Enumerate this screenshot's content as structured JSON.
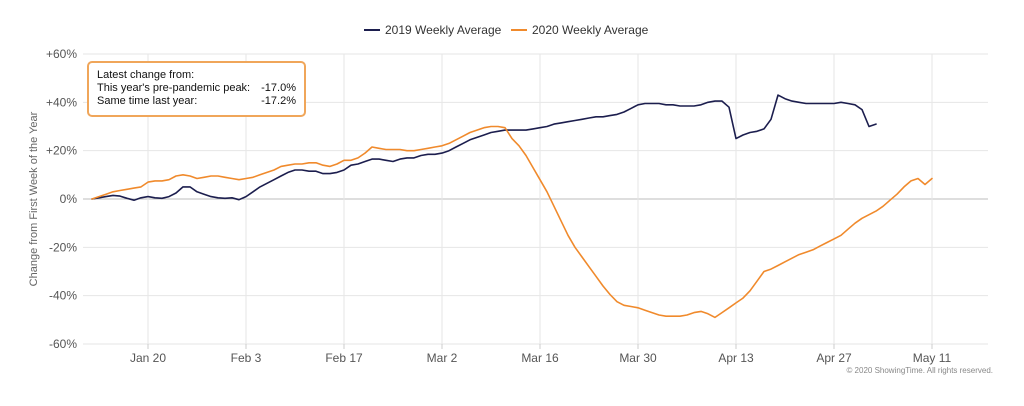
{
  "chart_data": {
    "type": "line",
    "title": "",
    "xlabel": "",
    "ylabel": "Change from First Week of the Year",
    "ylim": [
      -60,
      60
    ],
    "yticks": [
      -60,
      -40,
      -20,
      0,
      20,
      40,
      60
    ],
    "ytick_labels": [
      "-60%",
      "-40%",
      "-20%",
      "0%",
      "+20%",
      "+40%",
      "+60%"
    ],
    "xlim": [
      0,
      129
    ],
    "xticks": [
      {
        "day": 8,
        "label": "Jan 20"
      },
      {
        "day": 22,
        "label": "Feb 3"
      },
      {
        "day": 36,
        "label": "Feb 17"
      },
      {
        "day": 50,
        "label": "Mar 2"
      },
      {
        "day": 64,
        "label": "Mar 16"
      },
      {
        "day": 78,
        "label": "Mar 30"
      },
      {
        "day": 92,
        "label": "Apr 13"
      },
      {
        "day": 106,
        "label": "Apr 27"
      },
      {
        "day": 120,
        "label": "May 11"
      }
    ],
    "grid": true,
    "legend_position": "top-center",
    "series": [
      {
        "name": "2019 Weekly Average",
        "color": "#1c1e4e",
        "points": [
          [
            0,
            0
          ],
          [
            1,
            0.5
          ],
          [
            2,
            1
          ],
          [
            3,
            1.5
          ],
          [
            4,
            1.2
          ],
          [
            5,
            0.3
          ],
          [
            6,
            -0.5
          ],
          [
            7,
            0.5
          ],
          [
            8,
            1
          ],
          [
            9,
            0.5
          ],
          [
            10,
            0.3
          ],
          [
            11,
            1
          ],
          [
            12,
            2.5
          ],
          [
            13,
            5
          ],
          [
            14,
            5
          ],
          [
            15,
            3
          ],
          [
            16,
            2
          ],
          [
            17,
            1
          ],
          [
            18,
            0.5
          ],
          [
            19,
            0.3
          ],
          [
            20,
            0.5
          ],
          [
            21,
            -0.3
          ],
          [
            22,
            1
          ],
          [
            23,
            3
          ],
          [
            24,
            5
          ],
          [
            25,
            6.5
          ],
          [
            26,
            8
          ],
          [
            27,
            9.5
          ],
          [
            28,
            11
          ],
          [
            29,
            12
          ],
          [
            30,
            12
          ],
          [
            31,
            11.5
          ],
          [
            32,
            11.5
          ],
          [
            33,
            10.5
          ],
          [
            34,
            10.5
          ],
          [
            35,
            11
          ],
          [
            36,
            12
          ],
          [
            37,
            14
          ],
          [
            38,
            14.5
          ],
          [
            39,
            15.5
          ],
          [
            40,
            16.5
          ],
          [
            41,
            16.5
          ],
          [
            42,
            16
          ],
          [
            43,
            15.5
          ],
          [
            44,
            16.5
          ],
          [
            45,
            17
          ],
          [
            46,
            17
          ],
          [
            47,
            18
          ],
          [
            48,
            18.5
          ],
          [
            49,
            18.5
          ],
          [
            50,
            19
          ],
          [
            51,
            20
          ],
          [
            52,
            21.5
          ],
          [
            53,
            23
          ],
          [
            54,
            24.5
          ],
          [
            55,
            25.5
          ],
          [
            56,
            26.5
          ],
          [
            57,
            27.5
          ],
          [
            58,
            28
          ],
          [
            59,
            28.5
          ],
          [
            60,
            28.5
          ],
          [
            61,
            28.5
          ],
          [
            62,
            28.5
          ],
          [
            63,
            29
          ],
          [
            64,
            29.5
          ],
          [
            65,
            30
          ],
          [
            66,
            31
          ],
          [
            67,
            31.5
          ],
          [
            68,
            32
          ],
          [
            69,
            32.5
          ],
          [
            70,
            33
          ],
          [
            71,
            33.5
          ],
          [
            72,
            34
          ],
          [
            73,
            34
          ],
          [
            74,
            34.5
          ],
          [
            75,
            35
          ],
          [
            76,
            36
          ],
          [
            77,
            37.5
          ],
          [
            78,
            39
          ],
          [
            79,
            39.5
          ],
          [
            80,
            39.5
          ],
          [
            81,
            39.5
          ],
          [
            82,
            39
          ],
          [
            83,
            39
          ],
          [
            84,
            38.5
          ],
          [
            85,
            38.5
          ],
          [
            86,
            38.5
          ],
          [
            87,
            39
          ],
          [
            88,
            40
          ],
          [
            89,
            40.5
          ],
          [
            90,
            40.5
          ],
          [
            91,
            38
          ],
          [
            92,
            25
          ],
          [
            93,
            26.5
          ],
          [
            94,
            27.5
          ],
          [
            95,
            28
          ],
          [
            96,
            29
          ],
          [
            97,
            33
          ],
          [
            98,
            43
          ],
          [
            99,
            41.5
          ],
          [
            100,
            40.5
          ],
          [
            101,
            40
          ],
          [
            102,
            39.5
          ],
          [
            103,
            39.5
          ],
          [
            104,
            39.5
          ],
          [
            105,
            39.5
          ],
          [
            106,
            39.5
          ],
          [
            107,
            40
          ],
          [
            108,
            39.5
          ],
          [
            109,
            39
          ],
          [
            110,
            37
          ],
          [
            111,
            30
          ],
          [
            112,
            31
          ]
        ]
      },
      {
        "name": "2020 Weekly Average",
        "color": "#f08a2c",
        "points": [
          [
            0,
            0
          ],
          [
            1,
            1
          ],
          [
            2,
            2
          ],
          [
            3,
            3
          ],
          [
            4,
            3.5
          ],
          [
            5,
            4
          ],
          [
            6,
            4.5
          ],
          [
            7,
            5
          ],
          [
            8,
            7
          ],
          [
            9,
            7.5
          ],
          [
            10,
            7.5
          ],
          [
            11,
            8
          ],
          [
            12,
            9.5
          ],
          [
            13,
            10
          ],
          [
            14,
            9.5
          ],
          [
            15,
            8.5
          ],
          [
            16,
            9
          ],
          [
            17,
            9.5
          ],
          [
            18,
            9.5
          ],
          [
            19,
            9
          ],
          [
            20,
            8.5
          ],
          [
            21,
            8
          ],
          [
            22,
            8.5
          ],
          [
            23,
            9
          ],
          [
            24,
            10
          ],
          [
            25,
            11
          ],
          [
            26,
            12
          ],
          [
            27,
            13.5
          ],
          [
            28,
            14
          ],
          [
            29,
            14.5
          ],
          [
            30,
            14.5
          ],
          [
            31,
            15
          ],
          [
            32,
            15
          ],
          [
            33,
            14
          ],
          [
            34,
            13.5
          ],
          [
            35,
            14.5
          ],
          [
            36,
            16
          ],
          [
            37,
            16
          ],
          [
            38,
            17
          ],
          [
            39,
            19
          ],
          [
            40,
            21.5
          ],
          [
            41,
            21
          ],
          [
            42,
            20.5
          ],
          [
            43,
            20.5
          ],
          [
            44,
            20.5
          ],
          [
            45,
            20
          ],
          [
            46,
            20
          ],
          [
            47,
            20.5
          ],
          [
            48,
            21
          ],
          [
            49,
            21.5
          ],
          [
            50,
            22
          ],
          [
            51,
            23
          ],
          [
            52,
            24.5
          ],
          [
            53,
            26
          ],
          [
            54,
            27.5
          ],
          [
            55,
            28.5
          ],
          [
            56,
            29.5
          ],
          [
            57,
            30
          ],
          [
            58,
            30
          ],
          [
            59,
            29.5
          ],
          [
            60,
            25
          ],
          [
            61,
            22
          ],
          [
            62,
            18
          ],
          [
            63,
            13
          ],
          [
            64,
            8
          ],
          [
            65,
            3
          ],
          [
            66,
            -3
          ],
          [
            67,
            -9
          ],
          [
            68,
            -15
          ],
          [
            69,
            -20
          ],
          [
            70,
            -24
          ],
          [
            71,
            -28
          ],
          [
            72,
            -32
          ],
          [
            73,
            -36
          ],
          [
            74,
            -39.5
          ],
          [
            75,
            -42.5
          ],
          [
            76,
            -44
          ],
          [
            77,
            -44.5
          ],
          [
            78,
            -45
          ],
          [
            79,
            -46
          ],
          [
            80,
            -47
          ],
          [
            81,
            -48
          ],
          [
            82,
            -48.5
          ],
          [
            83,
            -48.5
          ],
          [
            84,
            -48.5
          ],
          [
            85,
            -48
          ],
          [
            86,
            -47
          ],
          [
            87,
            -46.5
          ],
          [
            88,
            -47.5
          ],
          [
            89,
            -49
          ],
          [
            90,
            -47
          ],
          [
            91,
            -45
          ],
          [
            92,
            -43
          ],
          [
            93,
            -41
          ],
          [
            94,
            -38
          ],
          [
            95,
            -34
          ],
          [
            96,
            -30
          ],
          [
            97,
            -29
          ],
          [
            98,
            -27.5
          ],
          [
            99,
            -26
          ],
          [
            100,
            -24.5
          ],
          [
            101,
            -23
          ],
          [
            102,
            -22
          ],
          [
            103,
            -21
          ],
          [
            104,
            -19.5
          ],
          [
            105,
            -18
          ],
          [
            106,
            -16.5
          ],
          [
            107,
            -15
          ],
          [
            108,
            -12.5
          ],
          [
            109,
            -10
          ],
          [
            110,
            -8
          ],
          [
            111,
            -6.5
          ],
          [
            112,
            -5
          ],
          [
            113,
            -3
          ],
          [
            114,
            -0.5
          ],
          [
            115,
            2
          ],
          [
            116,
            5
          ],
          [
            117,
            7.5
          ],
          [
            118,
            8.5
          ],
          [
            119,
            6
          ],
          [
            120,
            8.5
          ]
        ]
      }
    ],
    "annotation": {
      "title": "Latest change from:",
      "rows": [
        {
          "label": "This year's pre-pandemic peak:",
          "value": "-17.0%"
        },
        {
          "label": "Same time last year:",
          "value": "-17.2%"
        }
      ]
    },
    "credit": "© 2020 ShowingTime. All rights reserved."
  }
}
